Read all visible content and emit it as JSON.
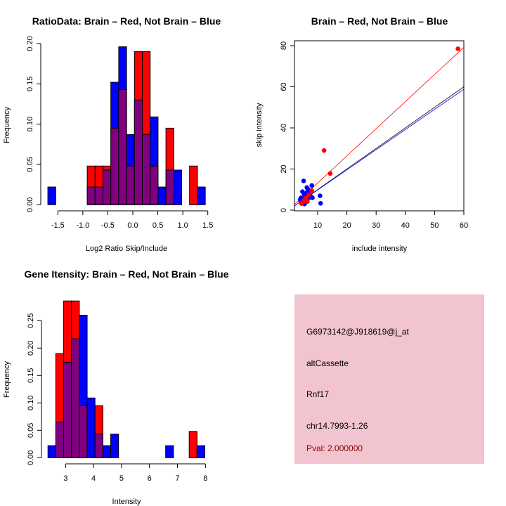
{
  "colors": {
    "brain": "#ff0000",
    "not_brain": "#0000ff",
    "overlap": "#800080",
    "panel_bg": "#f2c4cf",
    "pval_text": "#8b0000"
  },
  "chart_data": [
    {
      "type": "bar",
      "title": "RatioData: Brain – Red, Not Brain – Blue",
      "xlabel": "Log2 Ratio Skip/Include",
      "ylabel": "Frequency",
      "x_ticks": [
        "-1.5",
        "-1.0",
        "-0.5",
        "0.0",
        "0.5",
        "1.0",
        "1.5"
      ],
      "x_tick_values": [
        -1.5,
        -1.0,
        -0.5,
        0.0,
        0.5,
        1.0,
        1.5
      ],
      "y_ticks": [
        "0.00",
        "0.05",
        "0.10",
        "0.15",
        "0.20"
      ],
      "y_tick_values": [
        0,
        0.05,
        0.1,
        0.15,
        0.2
      ],
      "bin_start": -1.7,
      "bin_width": 0.1575,
      "series": [
        {
          "name": "Not Brain",
          "color": "#0000ff",
          "values": [
            0.022,
            0,
            0,
            0,
            0,
            0.022,
            0.022,
            0.043,
            0.152,
            0.196,
            0.087,
            0.13,
            0.087,
            0.109,
            0.022,
            0.043,
            0.043,
            0,
            0,
            0.022
          ]
        },
        {
          "name": "Brain",
          "color": "#ff0000",
          "values": [
            0,
            0,
            0,
            0,
            0,
            0.048,
            0.048,
            0.048,
            0.095,
            0.143,
            0.048,
            0.19,
            0.19,
            0.048,
            0,
            0.095,
            0,
            0,
            0.048,
            0
          ]
        }
      ]
    },
    {
      "type": "scatter",
      "title": "Brain – Red, Not Brain – Blue",
      "xlabel": "include intensity",
      "ylabel": "skip intensity",
      "x_ticks": [
        "10",
        "20",
        "30",
        "40",
        "50",
        "60"
      ],
      "x_tick_values": [
        10,
        20,
        30,
        40,
        50,
        60
      ],
      "y_ticks": [
        "0",
        "20",
        "40",
        "60",
        "80"
      ],
      "y_tick_values": [
        0,
        20,
        40,
        60,
        80
      ],
      "xlim": [
        2,
        60
      ],
      "ylim": [
        0,
        82
      ],
      "series": [
        {
          "name": "Brain",
          "color": "#ff0000",
          "points": [
            [
              58,
              78.5
            ],
            [
              12.2,
              29
            ],
            [
              14.3,
              17.8
            ],
            [
              8,
              9.5
            ],
            [
              5,
              4
            ],
            [
              6.5,
              4.2
            ],
            [
              4.5,
              3.2
            ],
            [
              6,
              6
            ],
            [
              5.5,
              5
            ],
            [
              7,
              7.5
            ]
          ]
        },
        {
          "name": "Not Brain",
          "color": "#0000ff",
          "points": [
            [
              5.2,
              14.2
            ],
            [
              6.3,
              11
            ],
            [
              8,
              12
            ],
            [
              10.8,
              7
            ],
            [
              11,
              3.3
            ],
            [
              4.8,
              9
            ],
            [
              7,
              8
            ],
            [
              8.2,
              6
            ],
            [
              6,
              7
            ],
            [
              5,
              5
            ],
            [
              4.5,
              4
            ],
            [
              5.5,
              3
            ],
            [
              6,
              4
            ],
            [
              7,
              6
            ],
            [
              5,
              6
            ],
            [
              4,
              5
            ],
            [
              6.5,
              9
            ],
            [
              7.5,
              7
            ],
            [
              5.8,
              5.5
            ],
            [
              4.8,
              3.5
            ],
            [
              6.8,
              10
            ],
            [
              5.3,
              8
            ],
            [
              7.8,
              6.5
            ],
            [
              6.2,
              5
            ],
            [
              4.3,
              6
            ],
            [
              5.6,
              4.5
            ],
            [
              7.2,
              9
            ],
            [
              6.6,
              6.5
            ]
          ]
        }
      ],
      "lines": [
        {
          "name": "Brain fit",
          "color": "#ff0000",
          "slope": 1.32,
          "intercept": 0
        },
        {
          "name": "Not Brain fit",
          "color": "#0000ff",
          "slope": 0.98,
          "intercept": 0
        }
      ],
      "reference_line": {
        "color": "#000000",
        "slope": 1.0,
        "intercept": 0
      }
    },
    {
      "type": "bar",
      "title": "Gene Itensity: Brain – Red, Not Brain – Blue",
      "xlabel": "Intensity",
      "ylabel": "Frequency",
      "x_ticks": [
        "3",
        "4",
        "5",
        "6",
        "7",
        "8"
      ],
      "x_tick_values": [
        3,
        4,
        5,
        6,
        7,
        8
      ],
      "y_ticks": [
        "0.00",
        "0.05",
        "0.10",
        "0.15",
        "0.20",
        "0.25"
      ],
      "y_tick_values": [
        0,
        0.05,
        0.1,
        0.15,
        0.2,
        0.25
      ],
      "bin_start": 2.37,
      "bin_width": 0.2805,
      "series": [
        {
          "name": "Not Brain",
          "color": "#0000ff",
          "values": [
            0.022,
            0.065,
            0.174,
            0.217,
            0.26,
            0.109,
            0.043,
            0.022,
            0.043,
            0,
            0,
            0,
            0,
            0,
            0,
            0.022,
            0,
            0,
            0,
            0.022
          ]
        },
        {
          "name": "Brain",
          "color": "#ff0000",
          "values": [
            0,
            0.19,
            0.286,
            0.286,
            0.095,
            0,
            0.095,
            0,
            0,
            0,
            0,
            0,
            0,
            0,
            0,
            0,
            0,
            0,
            0.048,
            0
          ]
        }
      ]
    }
  ],
  "info_panel": {
    "probe_id": "G6973142@J918619@j_at",
    "event_type": "altCassette",
    "gene": "Rnf17",
    "location": "chr14.7993-1.26",
    "pval": "Pval: 2.000000"
  }
}
